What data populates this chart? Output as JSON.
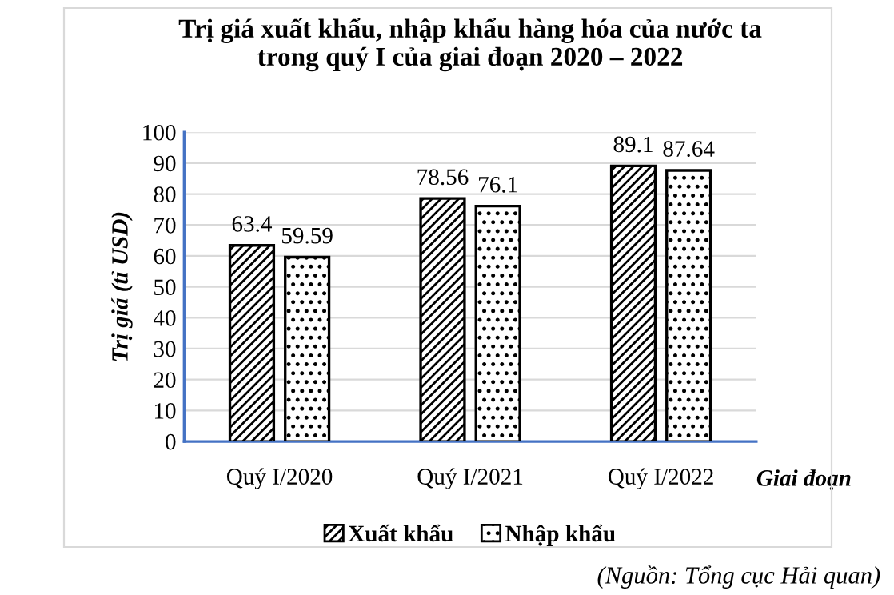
{
  "chart_data": {
    "type": "bar",
    "title": "Trị giá xuất khẩu, nhập khẩu hàng hóa của nước ta\ntrong quý I của giai đoạn 2020 – 2022",
    "xlabel": "Giai đoạn",
    "ylabel": "Trị giá (tỉ USD)",
    "categories": [
      "Quý I/2020",
      "Quý I/2021",
      "Quý I/2022"
    ],
    "series": [
      {
        "name": "Xuất khẩu",
        "color": "#000000",
        "values": [
          63.4,
          78.56,
          89.1
        ]
      },
      {
        "name": "Nhập khẩu",
        "color": "#000000",
        "values": [
          59.59,
          76.1,
          87.64
        ]
      }
    ],
    "ylim": [
      0,
      100
    ],
    "yticks": [
      0,
      10,
      20,
      30,
      40,
      50,
      60,
      70,
      80,
      90,
      100
    ],
    "grid": "y",
    "legend": "bottom",
    "data_labels": true,
    "annotations": [
      "(Nguồn: Tổng cục Hải quan)"
    ]
  }
}
